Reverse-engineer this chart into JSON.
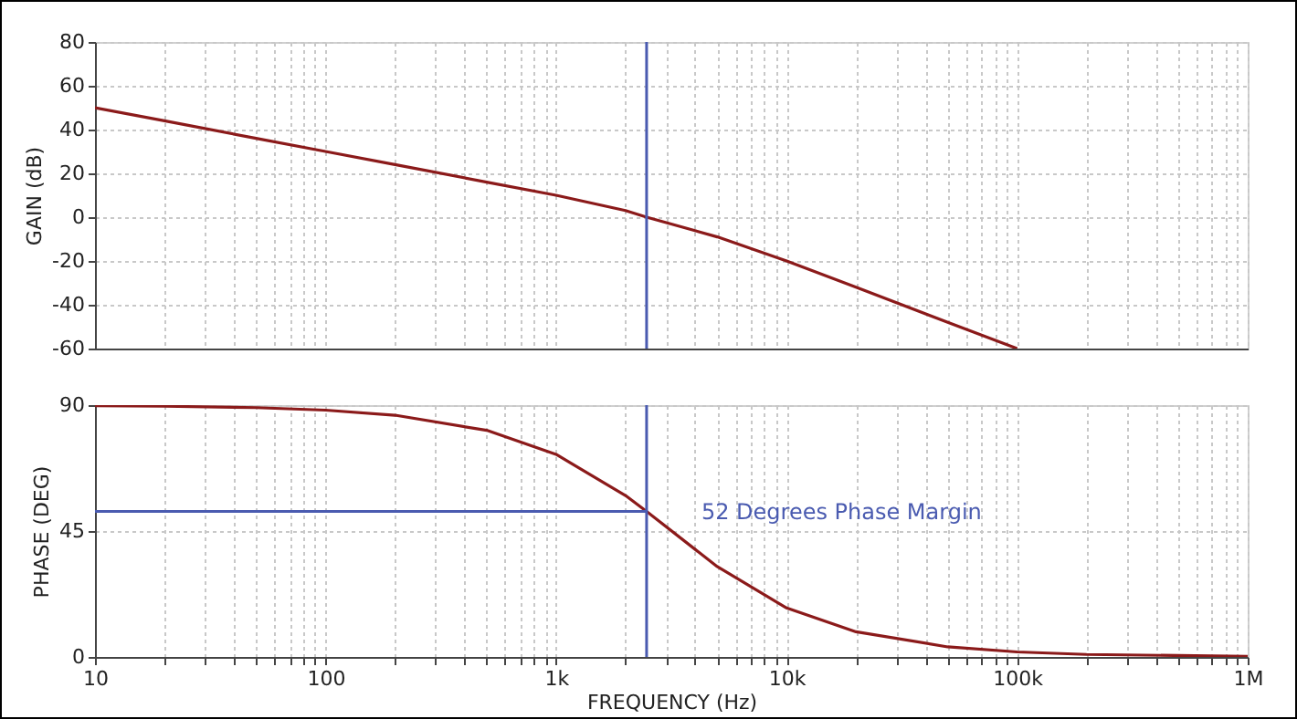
{
  "chart_data": [
    {
      "type": "line",
      "ylabel": "GAIN (dB)",
      "x": [
        10,
        20,
        50,
        100,
        200,
        500,
        1000,
        2000,
        2470,
        5000,
        10000,
        20000,
        50000,
        100000
      ],
      "series": [
        {
          "color": "#8b1a1a",
          "values": [
            50,
            44,
            36,
            30,
            24,
            16,
            10,
            3,
            0,
            -9,
            -20,
            -32,
            -48,
            -60
          ]
        }
      ],
      "xlim": [
        10,
        1000000
      ],
      "xticks": [
        10,
        20,
        30,
        40,
        50,
        60,
        70,
        80,
        90,
        100,
        200,
        300,
        400,
        500,
        600,
        700,
        800,
        900,
        1000,
        2000,
        3000,
        4000,
        5000,
        6000,
        7000,
        8000,
        9000,
        10000,
        20000,
        30000,
        40000,
        50000,
        60000,
        70000,
        80000,
        90000,
        100000,
        200000,
        300000,
        400000,
        500000,
        600000,
        700000,
        800000,
        900000,
        1000000
      ],
      "ylim": [
        -60,
        80
      ],
      "yticks": [
        -60,
        -40,
        -20,
        0,
        20,
        40,
        60,
        80
      ],
      "grid": true,
      "tick_labels": "y",
      "log": "x",
      "ref_lines": [
        {
          "axis": "x",
          "value": 2470,
          "color": "#4a5bb0"
        }
      ]
    },
    {
      "type": "line",
      "xlabel": "FREQUENCY (Hz)",
      "ylabel": "PHASE (DEG)",
      "x": [
        10,
        20,
        50,
        100,
        200,
        500,
        1000,
        2000,
        2470,
        5000,
        10000,
        20000,
        50000,
        100000,
        200000,
        1000000
      ],
      "series": [
        {
          "color": "#8b1a1a",
          "values": [
            89.8,
            89.6,
            89.1,
            88.2,
            86.4,
            81,
            72.4,
            57.7,
            52,
            32.3,
            17.5,
            9,
            3.6,
            1.8,
            0.9,
            0.2
          ]
        }
      ],
      "xlim": [
        10,
        1000000
      ],
      "xticks": [
        10,
        {
          "value": 20,
          "label": null
        },
        {
          "value": 30,
          "label": null
        },
        {
          "value": 40,
          "label": null
        },
        {
          "value": 50,
          "label": null
        },
        {
          "value": 60,
          "label": null
        },
        {
          "value": 70,
          "label": null
        },
        {
          "value": 80,
          "label": null
        },
        {
          "value": 90,
          "label": null
        },
        100,
        {
          "value": 200,
          "label": null
        },
        {
          "value": 300,
          "label": null
        },
        {
          "value": 400,
          "label": null
        },
        {
          "value": 500,
          "label": null
        },
        {
          "value": 600,
          "label": null
        },
        {
          "value": 700,
          "label": null
        },
        {
          "value": 800,
          "label": null
        },
        {
          "value": 900,
          "label": null
        },
        {
          "value": 1000,
          "label": "1k"
        },
        {
          "value": 2000,
          "label": null
        },
        {
          "value": 3000,
          "label": null
        },
        {
          "value": 4000,
          "label": null
        },
        {
          "value": 5000,
          "label": null
        },
        {
          "value": 6000,
          "label": null
        },
        {
          "value": 7000,
          "label": null
        },
        {
          "value": 8000,
          "label": null
        },
        {
          "value": 9000,
          "label": null
        },
        {
          "value": 10000,
          "label": "10k"
        },
        {
          "value": 20000,
          "label": null
        },
        {
          "value": 30000,
          "label": null
        },
        {
          "value": 40000,
          "label": null
        },
        {
          "value": 50000,
          "label": null
        },
        {
          "value": 60000,
          "label": null
        },
        {
          "value": 70000,
          "label": null
        },
        {
          "value": 80000,
          "label": null
        },
        {
          "value": 90000,
          "label": null
        },
        {
          "value": 100000,
          "label": "100k"
        },
        {
          "value": 200000,
          "label": null
        },
        {
          "value": 300000,
          "label": null
        },
        {
          "value": 400000,
          "label": null
        },
        {
          "value": 500000,
          "label": null
        },
        {
          "value": 600000,
          "label": null
        },
        {
          "value": 700000,
          "label": null
        },
        {
          "value": 800000,
          "label": null
        },
        {
          "value": 900000,
          "label": null
        },
        {
          "value": 1000000,
          "label": "1M"
        }
      ],
      "ylim": [
        0,
        90
      ],
      "yticks": [
        0,
        45,
        90
      ],
      "grid": true,
      "log": "x",
      "ref_lines": [
        {
          "axis": "x",
          "value": 2470,
          "color": "#4a5bb0"
        },
        {
          "axis": "y",
          "value": 52,
          "label": "52 Degrees Phase Margin",
          "color": "#4a5bb0"
        }
      ]
    }
  ]
}
